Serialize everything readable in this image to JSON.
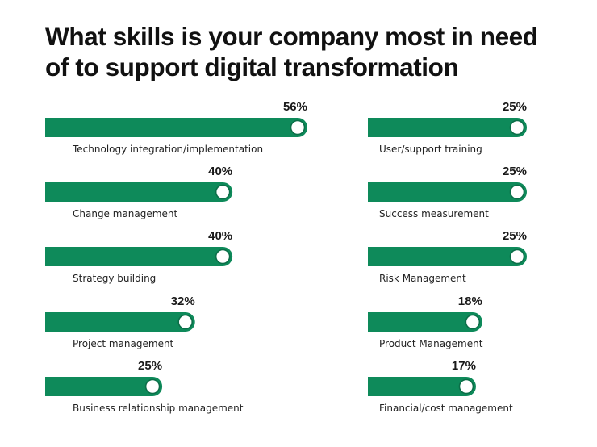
{
  "header": {
    "title_line1": "What skills is your company most in need",
    "title_line2": "of to support digital transformation"
  },
  "colors": {
    "bar": "#0e8a5a",
    "knob": "#ffffff"
  },
  "chart_data": {
    "type": "bar",
    "orientation": "horizontal",
    "title": "What skills is your company most in need of to support digital transformation",
    "xlabel": "",
    "ylabel": "",
    "unit": "%",
    "xlim": [
      0,
      56
    ],
    "grid": false,
    "categories": [
      "Technology integration/implementation",
      "Change management",
      "Strategy building",
      "Project management",
      "Business relationship management",
      "User/support training",
      "Success measurement",
      "Risk Management",
      "Product Management",
      "Financial/cost management"
    ],
    "values": [
      56,
      40,
      40,
      32,
      25,
      25,
      25,
      25,
      18,
      17
    ],
    "value_labels": [
      "56%",
      "40%",
      "40%",
      "32%",
      "25%",
      "25%",
      "25%",
      "25%",
      "18%",
      "17%"
    ]
  }
}
